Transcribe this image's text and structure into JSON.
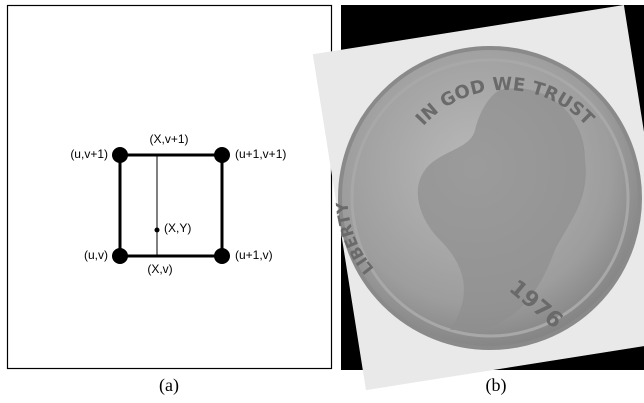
{
  "panel_a": {
    "corners": {
      "top_left": "(u,v+1)",
      "top_right": "(u+1,v+1)",
      "bottom_left": "(u,v)",
      "bottom_right": "(u+1,v)"
    },
    "top_mid": "(X,v+1)",
    "bottom_mid": "(X,v)",
    "point": "(X,Y)",
    "caption": "(a)"
  },
  "panel_b": {
    "inscriptions": {
      "motto": "IN GOD WE TRUST",
      "liberty": "LIBERTY",
      "year": "1976"
    },
    "caption": "(b)"
  }
}
